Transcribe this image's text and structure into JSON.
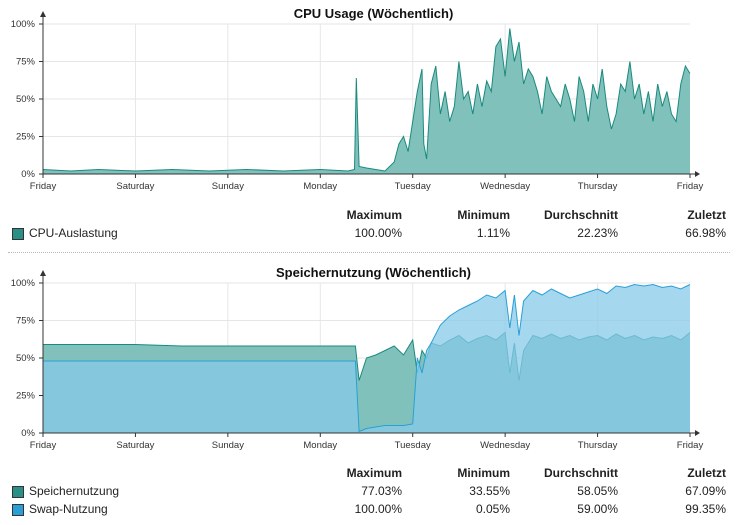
{
  "colors": {
    "cpu_fill": "#80c1bb",
    "cpu_line": "#1a8a7e",
    "mem_fill": "#80c1bb",
    "mem_line": "#1a8a7e",
    "swap_fill": "#87c9ea",
    "swap_line": "#2a9fd6",
    "overlap_fill": "#3fa6cc",
    "grid": "#e6e6e6",
    "axis": "#333333"
  },
  "stats_headers": [
    "Maximum",
    "Minimum",
    "Durchschnitt",
    "Zuletzt"
  ],
  "cpu": {
    "title": "CPU Usage (Wöchentlich)",
    "legend": [
      {
        "label": "CPU-Auslastung",
        "color": "#2a8f85",
        "stats": [
          "100.00%",
          "1.11%",
          "22.23%",
          "66.98%"
        ]
      }
    ]
  },
  "mem": {
    "title": "Speichernutzung (Wöchentlich)",
    "legend": [
      {
        "label": "Speichernutzung",
        "color": "#2a8f85",
        "stats": [
          "77.03%",
          "33.55%",
          "58.05%",
          "67.09%"
        ]
      },
      {
        "label": "Swap-Nutzung",
        "color": "#2a9fd6",
        "stats": [
          "100.00%",
          "0.05%",
          "59.00%",
          "99.35%"
        ]
      }
    ]
  },
  "chart_data": [
    {
      "type": "area",
      "title": "CPU Usage (Wöchentlich)",
      "x_ticks": [
        "Friday",
        "Saturday",
        "Sunday",
        "Monday",
        "Tuesday",
        "Wednesday",
        "Thursday",
        "Friday"
      ],
      "y_ticks": [
        "0%",
        "25%",
        "50%",
        "75%",
        "100%"
      ],
      "ylim": [
        0,
        100
      ],
      "grid": true,
      "series": [
        {
          "name": "CPU-Auslastung",
          "x": [
            0,
            0.3,
            0.6,
            1.0,
            1.4,
            1.8,
            2.2,
            2.6,
            3.0,
            3.3,
            3.37,
            3.39,
            3.42,
            3.5,
            3.6,
            3.7,
            3.8,
            3.85,
            3.9,
            3.95,
            4.0,
            4.05,
            4.1,
            4.12,
            4.15,
            4.2,
            4.25,
            4.3,
            4.35,
            4.4,
            4.45,
            4.5,
            4.55,
            4.6,
            4.65,
            4.7,
            4.75,
            4.8,
            4.85,
            4.9,
            4.95,
            5.0,
            5.05,
            5.1,
            5.15,
            5.2,
            5.25,
            5.3,
            5.35,
            5.4,
            5.45,
            5.5,
            5.55,
            5.6,
            5.65,
            5.7,
            5.75,
            5.8,
            5.85,
            5.9,
            5.95,
            6.0,
            6.05,
            6.1,
            6.15,
            6.2,
            6.25,
            6.3,
            6.35,
            6.4,
            6.45,
            6.5,
            6.55,
            6.6,
            6.65,
            6.7,
            6.75,
            6.8,
            6.85,
            6.9,
            6.95,
            7.0
          ],
          "values": [
            3,
            2,
            3,
            2,
            3,
            2,
            3,
            2,
            3,
            2,
            3,
            64,
            5,
            4,
            3,
            2,
            8,
            20,
            25,
            15,
            35,
            55,
            70,
            20,
            10,
            60,
            72,
            40,
            55,
            35,
            45,
            75,
            50,
            55,
            40,
            60,
            45,
            62,
            55,
            85,
            90,
            65,
            97,
            75,
            88,
            60,
            70,
            65,
            55,
            40,
            65,
            55,
            50,
            45,
            60,
            50,
            35,
            65,
            55,
            35,
            60,
            50,
            70,
            45,
            30,
            40,
            60,
            55,
            75,
            50,
            60,
            40,
            55,
            35,
            60,
            45,
            55,
            40,
            35,
            60,
            72,
            67
          ]
        }
      ]
    },
    {
      "type": "area",
      "title": "Speichernutzung (Wöchentlich)",
      "x_ticks": [
        "Friday",
        "Saturday",
        "Sunday",
        "Monday",
        "Tuesday",
        "Wednesday",
        "Thursday",
        "Friday"
      ],
      "y_ticks": [
        "0%",
        "25%",
        "50%",
        "75%",
        "100%"
      ],
      "ylim": [
        0,
        100
      ],
      "grid": true,
      "series": [
        {
          "name": "Speichernutzung",
          "x": [
            0,
            0.5,
            1.0,
            1.5,
            2.0,
            2.5,
            3.0,
            3.3,
            3.38,
            3.42,
            3.5,
            3.6,
            3.7,
            3.8,
            3.9,
            4.0,
            4.05,
            4.1,
            4.15,
            4.2,
            4.3,
            4.4,
            4.5,
            4.6,
            4.7,
            4.8,
            4.9,
            5.0,
            5.05,
            5.1,
            5.15,
            5.2,
            5.3,
            5.4,
            5.5,
            5.6,
            5.7,
            5.8,
            5.9,
            6.0,
            6.1,
            6.2,
            6.3,
            6.4,
            6.5,
            6.6,
            6.7,
            6.8,
            6.9,
            7.0
          ],
          "values": [
            59,
            59,
            59,
            58,
            58,
            58,
            58,
            58,
            58,
            35,
            50,
            52,
            55,
            58,
            52,
            62,
            40,
            55,
            50,
            60,
            58,
            62,
            65,
            60,
            63,
            65,
            62,
            67,
            40,
            60,
            35,
            55,
            65,
            63,
            66,
            63,
            65,
            62,
            64,
            65,
            62,
            66,
            63,
            65,
            62,
            64,
            63,
            65,
            62,
            67
          ]
        },
        {
          "name": "Swap-Nutzung",
          "x": [
            0,
            0.5,
            1.0,
            1.5,
            2.0,
            2.5,
            3.0,
            3.3,
            3.38,
            3.42,
            3.5,
            3.6,
            3.7,
            3.8,
            3.9,
            4.0,
            4.05,
            4.1,
            4.15,
            4.2,
            4.3,
            4.4,
            4.5,
            4.6,
            4.7,
            4.8,
            4.9,
            5.0,
            5.05,
            5.1,
            5.15,
            5.2,
            5.3,
            5.4,
            5.5,
            5.6,
            5.7,
            5.8,
            5.9,
            6.0,
            6.1,
            6.2,
            6.3,
            6.4,
            6.5,
            6.6,
            6.7,
            6.8,
            6.9,
            7.0
          ],
          "values": [
            48,
            48,
            48,
            48,
            48,
            48,
            48,
            48,
            48,
            1,
            3,
            4,
            5,
            5,
            5,
            6,
            50,
            40,
            55,
            60,
            72,
            78,
            82,
            85,
            88,
            92,
            90,
            95,
            70,
            92,
            65,
            88,
            95,
            92,
            96,
            93,
            90,
            92,
            94,
            96,
            93,
            98,
            97,
            99,
            98,
            99,
            97,
            98,
            96,
            99
          ]
        }
      ]
    }
  ]
}
